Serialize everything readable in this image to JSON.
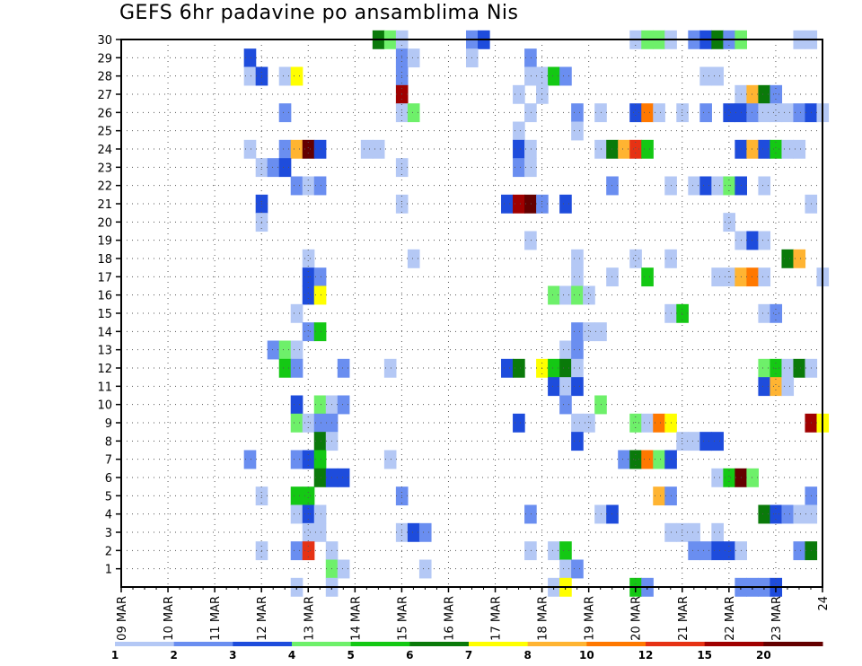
{
  "chart_data": {
    "type": "heatmap",
    "title": "GEFS 6hr padavine po ansamblima Nis",
    "xlabel": "",
    "ylabel": "",
    "x_tick_labels": [
      "09 MAR",
      "10 MAR",
      "11 MAR",
      "12 MAR",
      "13 MAR",
      "14 MAR",
      "15 MAR",
      "16 MAR",
      "17 MAR",
      "18 MAR",
      "19 MAR",
      "20 MAR",
      "21 MAR",
      "22 MAR",
      "23 MAR",
      "24"
    ],
    "y_ticks": [
      1,
      2,
      3,
      4,
      5,
      6,
      7,
      8,
      9,
      10,
      11,
      12,
      13,
      14,
      15,
      16,
      17,
      18,
      19,
      20,
      21,
      22,
      23,
      24,
      25,
      26,
      27,
      28,
      29,
      30
    ],
    "x_range_days": [
      0,
      15
    ],
    "y_range": [
      0,
      30
    ],
    "grid": "dotted",
    "legend": "bottom colorbar",
    "colorbar": {
      "labels": [
        "1",
        "2",
        "3",
        "4",
        "5",
        "6",
        "7",
        "8",
        "10",
        "12",
        "15",
        "20"
      ],
      "colors": [
        "#b4c8f5",
        "#6a8ef0",
        "#1e4cdc",
        "#6ef06a",
        "#14c814",
        "#0a7a0a",
        "#ffff00",
        "#ffb432",
        "#ff7800",
        "#e63214",
        "#a00000",
        "#640000"
      ]
    },
    "cells": [
      [
        5.5,
        30,
        6
      ],
      [
        5.75,
        30,
        4
      ],
      [
        6,
        30,
        1
      ],
      [
        7.5,
        30,
        2
      ],
      [
        7.75,
        30,
        3
      ],
      [
        11,
        30,
        1
      ],
      [
        11.25,
        30,
        4
      ],
      [
        11.5,
        30,
        4
      ],
      [
        11.75,
        30,
        1
      ],
      [
        12.25,
        30,
        2
      ],
      [
        12.5,
        30,
        3
      ],
      [
        12.75,
        30,
        6
      ],
      [
        13,
        30,
        2
      ],
      [
        13.25,
        30,
        4
      ],
      [
        14.5,
        30,
        1
      ],
      [
        14.75,
        30,
        1
      ],
      [
        2.75,
        29,
        3
      ],
      [
        6,
        29,
        2
      ],
      [
        6.25,
        29,
        1
      ],
      [
        7.5,
        29,
        1
      ],
      [
        8.75,
        29,
        2
      ],
      [
        2.75,
        28,
        1
      ],
      [
        3,
        28,
        3
      ],
      [
        3.5,
        28,
        1
      ],
      [
        3.75,
        28,
        7
      ],
      [
        6,
        28,
        2
      ],
      [
        8.75,
        28,
        1
      ],
      [
        9,
        28,
        1
      ],
      [
        9.25,
        28,
        5
      ],
      [
        9.5,
        28,
        2
      ],
      [
        12.5,
        28,
        1
      ],
      [
        12.75,
        28,
        1
      ],
      [
        6,
        27,
        11
      ],
      [
        8.5,
        27,
        1
      ],
      [
        9,
        27,
        1
      ],
      [
        13.25,
        27,
        1
      ],
      [
        13.5,
        27,
        8
      ],
      [
        13.75,
        27,
        6
      ],
      [
        14,
        27,
        2
      ],
      [
        3.5,
        26,
        2
      ],
      [
        6,
        26,
        1
      ],
      [
        6.25,
        26,
        4
      ],
      [
        8.75,
        26,
        1
      ],
      [
        9.75,
        26,
        2
      ],
      [
        10.25,
        26,
        1
      ],
      [
        11,
        26,
        3
      ],
      [
        11.25,
        26,
        9
      ],
      [
        11.5,
        26,
        1
      ],
      [
        12,
        26,
        1
      ],
      [
        12.5,
        26,
        2
      ],
      [
        13,
        26,
        3
      ],
      [
        13.25,
        26,
        3
      ],
      [
        13.5,
        26,
        2
      ],
      [
        13.75,
        26,
        1
      ],
      [
        14,
        26,
        1
      ],
      [
        14.25,
        26,
        1
      ],
      [
        14.5,
        26,
        2
      ],
      [
        14.75,
        26,
        3
      ],
      [
        15,
        26,
        1
      ],
      [
        8.5,
        25,
        1
      ],
      [
        9.75,
        25,
        1
      ],
      [
        2.75,
        24,
        1
      ],
      [
        3.5,
        24,
        2
      ],
      [
        3.75,
        24,
        8
      ],
      [
        4,
        24,
        12
      ],
      [
        4.25,
        24,
        3
      ],
      [
        5.25,
        24,
        1
      ],
      [
        5.5,
        24,
        1
      ],
      [
        8.5,
        24,
        3
      ],
      [
        8.75,
        24,
        1
      ],
      [
        10.25,
        24,
        1
      ],
      [
        10.5,
        24,
        6
      ],
      [
        10.75,
        24,
        8
      ],
      [
        11,
        24,
        10
      ],
      [
        11.25,
        24,
        5
      ],
      [
        13.25,
        24,
        3
      ],
      [
        13.5,
        24,
        8
      ],
      [
        13.75,
        24,
        3
      ],
      [
        14,
        24,
        5
      ],
      [
        14.25,
        24,
        1
      ],
      [
        14.5,
        24,
        1
      ],
      [
        3,
        23,
        1
      ],
      [
        3.25,
        23,
        2
      ],
      [
        3.5,
        23,
        3
      ],
      [
        6,
        23,
        1
      ],
      [
        8.5,
        23,
        2
      ],
      [
        8.75,
        23,
        1
      ],
      [
        3.75,
        22,
        2
      ],
      [
        4,
        22,
        1
      ],
      [
        4.25,
        22,
        2
      ],
      [
        10.5,
        22,
        2
      ],
      [
        11.75,
        22,
        1
      ],
      [
        12.25,
        22,
        1
      ],
      [
        12.5,
        22,
        3
      ],
      [
        12.75,
        22,
        1
      ],
      [
        13,
        22,
        4
      ],
      [
        13.25,
        22,
        3
      ],
      [
        13.75,
        22,
        1
      ],
      [
        3,
        21,
        3
      ],
      [
        6,
        21,
        1
      ],
      [
        8.25,
        21,
        3
      ],
      [
        8.5,
        21,
        11
      ],
      [
        8.75,
        21,
        12
      ],
      [
        9,
        21,
        2
      ],
      [
        9.5,
        21,
        3
      ],
      [
        14.75,
        21,
        1
      ],
      [
        3,
        20,
        1
      ],
      [
        13,
        20,
        1
      ],
      [
        8.75,
        19,
        1
      ],
      [
        13.25,
        19,
        1
      ],
      [
        13.5,
        19,
        3
      ],
      [
        13.75,
        19,
        1
      ],
      [
        4,
        18,
        1
      ],
      [
        6.25,
        18,
        1
      ],
      [
        9.75,
        18,
        1
      ],
      [
        11,
        18,
        1
      ],
      [
        11.75,
        18,
        1
      ],
      [
        14.25,
        18,
        6
      ],
      [
        14.5,
        18,
        8
      ],
      [
        4,
        17,
        3
      ],
      [
        4.25,
        17,
        2
      ],
      [
        9.75,
        17,
        1
      ],
      [
        10.5,
        17,
        1
      ],
      [
        11.25,
        17,
        5
      ],
      [
        12.75,
        17,
        1
      ],
      [
        13,
        17,
        1
      ],
      [
        13.25,
        17,
        8
      ],
      [
        13.5,
        17,
        9
      ],
      [
        13.75,
        17,
        1
      ],
      [
        15,
        17,
        1
      ],
      [
        4,
        16,
        3
      ],
      [
        4.25,
        16,
        7
      ],
      [
        9.25,
        16,
        4
      ],
      [
        9.5,
        16,
        1
      ],
      [
        9.75,
        16,
        4
      ],
      [
        10,
        16,
        1
      ],
      [
        3.75,
        15,
        1
      ],
      [
        11.75,
        15,
        1
      ],
      [
        12,
        15,
        5
      ],
      [
        13.75,
        15,
        1
      ],
      [
        14,
        15,
        2
      ],
      [
        4,
        14,
        2
      ],
      [
        4.25,
        14,
        5
      ],
      [
        9.75,
        14,
        2
      ],
      [
        10,
        14,
        1
      ],
      [
        10.25,
        14,
        1
      ],
      [
        3.25,
        13,
        2
      ],
      [
        3.5,
        13,
        4
      ],
      [
        3.75,
        13,
        1
      ],
      [
        9.5,
        13,
        1
      ],
      [
        9.75,
        13,
        2
      ],
      [
        3.5,
        12,
        5
      ],
      [
        3.75,
        12,
        2
      ],
      [
        4.75,
        12,
        2
      ],
      [
        5.75,
        12,
        1
      ],
      [
        8.25,
        12,
        3
      ],
      [
        8.5,
        12,
        6
      ],
      [
        9,
        12,
        7
      ],
      [
        9.25,
        12,
        5
      ],
      [
        9.5,
        12,
        6
      ],
      [
        9.75,
        12,
        1
      ],
      [
        13.75,
        12,
        4
      ],
      [
        14,
        12,
        5
      ],
      [
        14.25,
        12,
        1
      ],
      [
        14.5,
        12,
        6
      ],
      [
        14.75,
        12,
        1
      ],
      [
        9.25,
        11,
        3
      ],
      [
        9.5,
        11,
        1
      ],
      [
        9.75,
        11,
        3
      ],
      [
        13.75,
        11,
        3
      ],
      [
        14,
        11,
        8
      ],
      [
        14.25,
        11,
        1
      ],
      [
        3.75,
        10,
        3
      ],
      [
        4.25,
        10,
        4
      ],
      [
        4.5,
        10,
        1
      ],
      [
        4.75,
        10,
        2
      ],
      [
        9.5,
        10,
        2
      ],
      [
        10.25,
        10,
        4
      ],
      [
        3.75,
        9,
        4
      ],
      [
        4,
        9,
        1
      ],
      [
        4.25,
        9,
        2
      ],
      [
        4.5,
        9,
        2
      ],
      [
        8.5,
        9,
        3
      ],
      [
        9.75,
        9,
        1
      ],
      [
        10,
        9,
        1
      ],
      [
        11,
        9,
        4
      ],
      [
        11.25,
        9,
        1
      ],
      [
        11.5,
        9,
        9
      ],
      [
        11.75,
        9,
        7
      ],
      [
        14.75,
        9,
        11
      ],
      [
        15,
        9,
        7
      ],
      [
        4.25,
        8,
        6
      ],
      [
        4.5,
        8,
        1
      ],
      [
        9.75,
        8,
        3
      ],
      [
        12,
        8,
        1
      ],
      [
        12.25,
        8,
        1
      ],
      [
        12.5,
        8,
        3
      ],
      [
        12.75,
        8,
        3
      ],
      [
        2.75,
        7,
        2
      ],
      [
        3.75,
        7,
        2
      ],
      [
        4,
        7,
        3
      ],
      [
        4.25,
        7,
        5
      ],
      [
        5.75,
        7,
        1
      ],
      [
        10.75,
        7,
        2
      ],
      [
        11,
        7,
        6
      ],
      [
        11.25,
        7,
        9
      ],
      [
        11.5,
        7,
        4
      ],
      [
        11.75,
        7,
        3
      ],
      [
        4.25,
        6,
        6
      ],
      [
        4.5,
        6,
        3
      ],
      [
        4.75,
        6,
        3
      ],
      [
        12.75,
        6,
        1
      ],
      [
        13,
        6,
        5
      ],
      [
        13.25,
        6,
        12
      ],
      [
        13.5,
        6,
        4
      ],
      [
        3,
        5,
        1
      ],
      [
        3.75,
        5,
        5
      ],
      [
        4,
        5,
        5
      ],
      [
        6,
        5,
        2
      ],
      [
        11.5,
        5,
        8
      ],
      [
        11.75,
        5,
        2
      ],
      [
        14.75,
        5,
        2
      ],
      [
        3.75,
        4,
        1
      ],
      [
        4,
        4,
        3
      ],
      [
        4.25,
        4,
        1
      ],
      [
        8.75,
        4,
        2
      ],
      [
        10.25,
        4,
        1
      ],
      [
        10.5,
        4,
        3
      ],
      [
        13.75,
        4,
        6
      ],
      [
        14,
        4,
        3
      ],
      [
        14.25,
        4,
        2
      ],
      [
        14.5,
        4,
        1
      ],
      [
        14.75,
        4,
        1
      ],
      [
        4,
        3,
        1
      ],
      [
        4.25,
        3,
        1
      ],
      [
        6,
        3,
        1
      ],
      [
        6.25,
        3,
        3
      ],
      [
        6.5,
        3,
        2
      ],
      [
        11.75,
        3,
        1
      ],
      [
        12,
        3,
        1
      ],
      [
        12.25,
        3,
        1
      ],
      [
        12.75,
        3,
        1
      ],
      [
        3,
        2,
        1
      ],
      [
        3.75,
        2,
        2
      ],
      [
        4,
        2,
        10
      ],
      [
        4.5,
        2,
        1
      ],
      [
        8.75,
        2,
        1
      ],
      [
        9.25,
        2,
        1
      ],
      [
        9.5,
        2,
        5
      ],
      [
        12.25,
        2,
        2
      ],
      [
        12.5,
        2,
        2
      ],
      [
        12.75,
        2,
        3
      ],
      [
        13,
        2,
        3
      ],
      [
        13.25,
        2,
        1
      ],
      [
        14.5,
        2,
        2
      ],
      [
        14.75,
        2,
        6
      ],
      [
        4.5,
        1,
        4
      ],
      [
        4.75,
        1,
        1
      ],
      [
        6.5,
        1,
        1
      ],
      [
        9.5,
        1,
        1
      ],
      [
        9.75,
        1,
        2
      ],
      [
        3.75,
        0,
        1
      ],
      [
        4.5,
        0,
        1
      ],
      [
        9.25,
        0,
        1
      ],
      [
        9.5,
        0,
        7
      ],
      [
        11,
        0,
        5
      ],
      [
        11.25,
        0,
        2
      ],
      [
        13.25,
        0,
        2
      ],
      [
        13.5,
        0,
        2
      ],
      [
        13.75,
        0,
        2
      ],
      [
        14,
        0,
        3
      ]
    ]
  }
}
